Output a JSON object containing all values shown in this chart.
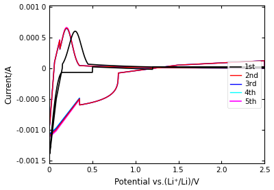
{
  "title": "",
  "xlabel": "Potential vs.(Li⁺/Li)/V",
  "ylabel": "Current/A",
  "xlim": [
    0.0,
    2.5
  ],
  "ylim": [
    -0.00155,
    0.00102
  ],
  "yticks": [
    -0.0015,
    -0.001,
    -0.0005,
    0,
    0.0005,
    0.001
  ],
  "ytick_labels": [
    "-0.001 5",
    "-0.001 0",
    "-0.000 5",
    "0",
    "0.000 5",
    "0.001 0"
  ],
  "xticks": [
    0.0,
    0.5,
    1.0,
    1.5,
    2.0,
    2.5
  ],
  "legend_labels": [
    "1st",
    "2nd",
    "3rd",
    "4th",
    "5th"
  ],
  "line_colors": [
    "black",
    "red",
    "blue",
    "cyan",
    "magenta"
  ],
  "figsize": [
    4.0,
    2.78
  ],
  "dpi": 100
}
